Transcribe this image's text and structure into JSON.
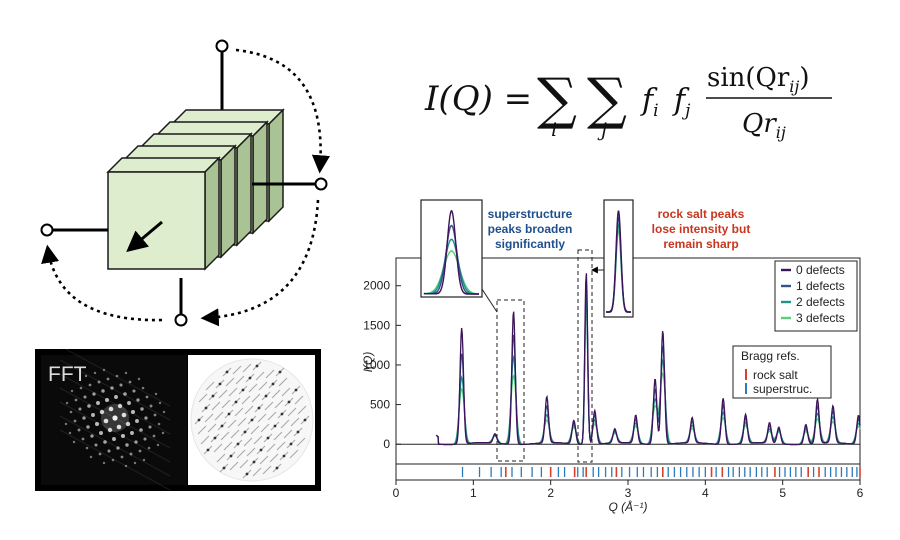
{
  "formula": {
    "lhs": "I(Q) =",
    "sum_index_1": "i",
    "sum_index_2": "j",
    "factor": "f",
    "numerator": "sin(Qr",
    "denominator": "Qr",
    "sub_ij": "ij",
    "sub_i": "i",
    "sub_j": "j"
  },
  "fft_panel": {
    "label": "FFT"
  },
  "annotations": {
    "superstructure": [
      "superstructure",
      "peaks broaden",
      "significantly"
    ],
    "rocksalt": [
      "rock salt peaks",
      "lose intensity but",
      "remain sharp"
    ]
  },
  "colors": {
    "cube_fill": "#deedcd",
    "cube_side": "#aac394",
    "superstructure_text": "#1e4f8c",
    "rocksalt_text": "#c8361e",
    "rocksalt_tick": "#d2422c",
    "superstructure_tick": "#2e79b8"
  },
  "chart_data": {
    "type": "line",
    "xlabel": "Q (Å⁻¹)",
    "ylabel": "I(Q)",
    "xlim": [
      0,
      6
    ],
    "ylim": [
      -250,
      2350
    ],
    "x_ticks": [
      0,
      1,
      2,
      3,
      4,
      5,
      6
    ],
    "y_ticks": [
      0,
      500,
      1000,
      1500,
      2000
    ],
    "legend_position": "top-right",
    "series": [
      {
        "name": "0 defects",
        "color": "#3b1459",
        "peaks": [
          [
            0.85,
            1480
          ],
          [
            1.28,
            120
          ],
          [
            1.52,
            1700
          ],
          [
            1.95,
            590
          ],
          [
            2.3,
            300
          ],
          [
            2.46,
            2190
          ],
          [
            2.57,
            430
          ],
          [
            2.83,
            180
          ],
          [
            3.1,
            360
          ],
          [
            3.35,
            840
          ],
          [
            3.45,
            1450
          ],
          [
            3.83,
            320
          ],
          [
            4.23,
            590
          ],
          [
            4.52,
            370
          ],
          [
            4.83,
            260
          ],
          [
            4.95,
            210
          ],
          [
            5.3,
            250
          ],
          [
            5.45,
            560
          ],
          [
            5.65,
            470
          ],
          [
            5.98,
            370
          ]
        ]
      },
      {
        "name": "1 defects",
        "color": "#33538c",
        "peaks": [
          [
            0.85,
            1150
          ],
          [
            1.28,
            110
          ],
          [
            1.52,
            1400
          ],
          [
            1.95,
            470
          ],
          [
            2.3,
            270
          ],
          [
            2.46,
            2050
          ],
          [
            2.57,
            370
          ],
          [
            2.83,
            160
          ],
          [
            3.1,
            310
          ],
          [
            3.35,
            710
          ],
          [
            3.45,
            1260
          ],
          [
            3.83,
            270
          ],
          [
            4.23,
            500
          ],
          [
            4.52,
            320
          ],
          [
            4.83,
            220
          ],
          [
            4.95,
            190
          ],
          [
            5.3,
            220
          ],
          [
            5.45,
            470
          ],
          [
            5.65,
            400
          ],
          [
            5.98,
            320
          ]
        ]
      },
      {
        "name": "2 defects",
        "color": "#22918e",
        "peaks": [
          [
            0.85,
            850
          ],
          [
            1.28,
            100
          ],
          [
            1.52,
            1120
          ],
          [
            1.95,
            360
          ],
          [
            2.3,
            240
          ],
          [
            2.46,
            1910
          ],
          [
            2.57,
            310
          ],
          [
            2.83,
            140
          ],
          [
            3.1,
            260
          ],
          [
            3.35,
            580
          ],
          [
            3.45,
            1070
          ],
          [
            3.83,
            220
          ],
          [
            4.23,
            410
          ],
          [
            4.52,
            270
          ],
          [
            4.83,
            180
          ],
          [
            4.95,
            170
          ],
          [
            5.3,
            190
          ],
          [
            5.45,
            380
          ],
          [
            5.65,
            330
          ],
          [
            5.98,
            270
          ]
        ]
      },
      {
        "name": "3 defects",
        "color": "#5ad07a",
        "peaks": [
          [
            0.85,
            700
          ],
          [
            1.28,
            90
          ],
          [
            1.52,
            880
          ],
          [
            1.95,
            290
          ],
          [
            2.3,
            210
          ],
          [
            2.46,
            1780
          ],
          [
            2.57,
            260
          ],
          [
            2.83,
            120
          ],
          [
            3.1,
            220
          ],
          [
            3.35,
            480
          ],
          [
            3.45,
            900
          ],
          [
            3.83,
            180
          ],
          [
            4.23,
            340
          ],
          [
            4.52,
            230
          ],
          [
            4.83,
            150
          ],
          [
            4.95,
            150
          ],
          [
            5.3,
            160
          ],
          [
            5.45,
            310
          ],
          [
            5.65,
            270
          ],
          [
            5.98,
            230
          ]
        ]
      }
    ],
    "bragg": {
      "title": "Bragg refs.",
      "rocksalt_label": "rock salt",
      "superstructure_label": "superstruc.",
      "rocksalt_q": [
        1.42,
        2.0,
        2.31,
        2.46,
        2.85,
        3.45,
        4.08,
        4.22,
        4.9,
        5.33,
        5.47,
        6.0
      ],
      "superstructure_q": [
        0.86,
        1.08,
        1.23,
        1.36,
        1.5,
        1.62,
        1.76,
        1.88,
        2.1,
        2.18,
        2.35,
        2.42,
        2.55,
        2.62,
        2.71,
        2.79,
        2.92,
        3.02,
        3.12,
        3.2,
        3.3,
        3.38,
        3.52,
        3.6,
        3.68,
        3.76,
        3.84,
        3.92,
        4.0,
        4.14,
        4.3,
        4.36,
        4.44,
        4.51,
        4.58,
        4.66,
        4.73,
        4.8,
        4.96,
        5.03,
        5.1,
        5.17,
        5.24,
        5.4,
        5.55,
        5.62,
        5.69,
        5.76,
        5.83,
        5.9,
        5.96
      ]
    }
  }
}
